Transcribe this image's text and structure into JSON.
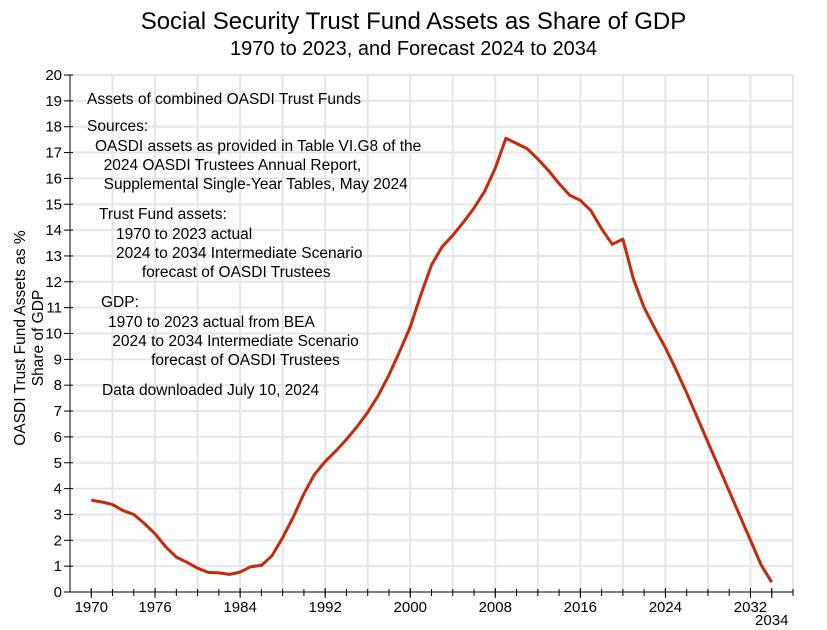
{
  "title": "Social Security Trust Fund Assets as Share of GDP",
  "subtitle": "1970 to 2023, and Forecast 2024 to 2034",
  "annotations": {
    "a1": "Assets of combined OASDI Trust Funds",
    "a2": "Sources:",
    "a3": "OASDI assets as provided in Table VI.G8 of the\n  2024 OASDI Trustees Annual Report,\n  Supplemental Single-Year Tables, May 2024",
    "a4": "Trust Fund assets:",
    "a5": "1970 to 2023 actual\n2024 to 2034 Intermediate Scenario\n      forecast of OASDI Trustees",
    "a6": "GDP:",
    "a7": "1970 to 2023 actual from BEA\n 2024 to 2034 Intermediate Scenario\n          forecast of OASDI Trustees",
    "a8": "Data downloaded July 10, 2024"
  },
  "chart_data": {
    "type": "line",
    "title": "Social Security Trust Fund Assets as Share of GDP",
    "subtitle": "1970 to 2023, and Forecast 2024 to 2034",
    "xlabel": "",
    "ylabel": "OASDI Trust Fund Assets as % Share of GDP",
    "xlim": [
      1968,
      2036
    ],
    "ylim": [
      0,
      20
    ],
    "grid": true,
    "line_color": "#c42a0c",
    "xticks_labeled": [
      1970,
      1976,
      1984,
      1992,
      2000,
      2008,
      2016,
      2024,
      2032,
      2034
    ],
    "yticks": [
      0,
      1,
      2,
      3,
      4,
      5,
      6,
      7,
      8,
      9,
      10,
      11,
      12,
      13,
      14,
      15,
      16,
      17,
      18,
      19,
      20
    ],
    "x": [
      1970,
      1971,
      1972,
      1973,
      1974,
      1975,
      1976,
      1977,
      1978,
      1979,
      1980,
      1981,
      1982,
      1983,
      1984,
      1985,
      1986,
      1987,
      1988,
      1989,
      1990,
      1991,
      1992,
      1993,
      1994,
      1995,
      1996,
      1997,
      1998,
      1999,
      2000,
      2001,
      2002,
      2003,
      2004,
      2005,
      2006,
      2007,
      2008,
      2009,
      2010,
      2011,
      2012,
      2013,
      2014,
      2015,
      2016,
      2017,
      2018,
      2019,
      2020,
      2021,
      2022,
      2023,
      2024,
      2025,
      2026,
      2027,
      2028,
      2029,
      2030,
      2031,
      2032,
      2033,
      2034
    ],
    "y": [
      3.55,
      3.48,
      3.38,
      3.15,
      3.0,
      2.65,
      2.25,
      1.75,
      1.35,
      1.15,
      0.92,
      0.76,
      0.74,
      0.68,
      0.77,
      0.98,
      1.03,
      1.4,
      2.1,
      2.9,
      3.8,
      4.55,
      5.05,
      5.45,
      5.9,
      6.4,
      6.95,
      7.6,
      8.4,
      9.3,
      10.25,
      11.5,
      12.65,
      13.35,
      13.8,
      14.3,
      14.85,
      15.5,
      16.4,
      17.55,
      17.35,
      17.15,
      16.75,
      16.3,
      15.8,
      15.35,
      15.15,
      14.75,
      14.05,
      13.45,
      13.65,
      12.1,
      11.0,
      10.2,
      9.45,
      8.6,
      7.7,
      6.75,
      5.8,
      4.85,
      3.9,
      2.95,
      2.0,
      1.05,
      0.38
    ]
  }
}
